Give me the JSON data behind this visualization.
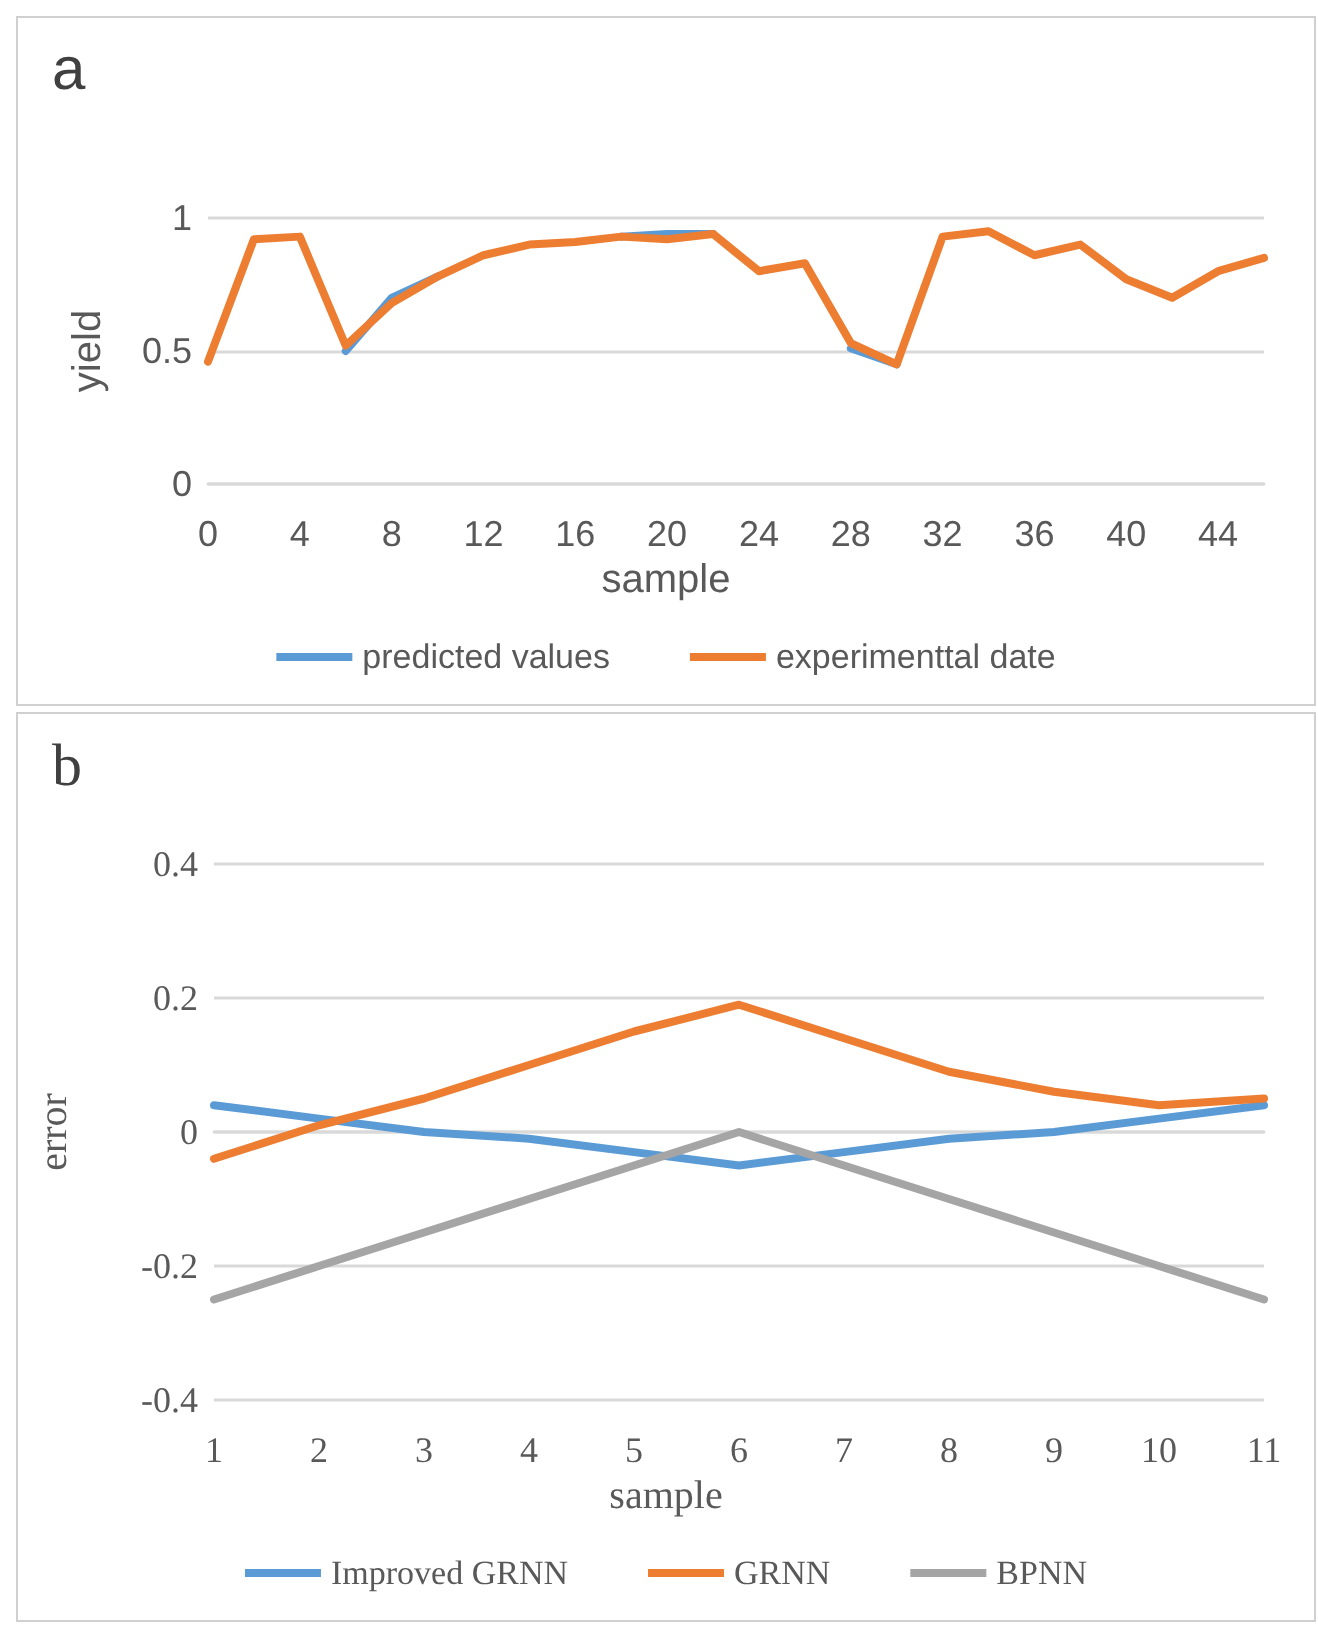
{
  "chart_data": [
    {
      "type": "line",
      "title": "a",
      "xlabel": "sample",
      "ylabel": "yield",
      "categories": [
        "0",
        null,
        "4",
        null,
        "8",
        null,
        "12",
        null,
        "16",
        null,
        "20",
        null,
        "24",
        null,
        "28",
        null,
        "32",
        null,
        "36",
        null,
        "40",
        null,
        "44",
        null
      ],
      "series": [
        {
          "name": "predicted values",
          "color": "#5b9bd5",
          "values": [
            null,
            null,
            null,
            0.5,
            0.7,
            0.78,
            null,
            null,
            null,
            0.93,
            0.94,
            0.94,
            null,
            null,
            0.51,
            0.45,
            null,
            null,
            null,
            null,
            null,
            null,
            null,
            null
          ]
        },
        {
          "name": "experimenttal date",
          "color": "#ed7d31",
          "values": [
            0.46,
            0.92,
            0.93,
            0.52,
            0.68,
            0.78,
            0.86,
            0.9,
            0.91,
            0.93,
            0.92,
            0.94,
            0.8,
            0.83,
            0.53,
            0.45,
            0.93,
            0.95,
            0.86,
            0.9,
            0.77,
            0.7,
            0.8,
            0.85
          ]
        }
      ],
      "ylim": [
        0,
        1
      ],
      "yticks": [
        0,
        0.5,
        1
      ],
      "grid": "y",
      "legend": "bottom",
      "marker": "none",
      "line_style": "solid"
    },
    {
      "type": "line",
      "title": "b",
      "xlabel": "sample",
      "ylabel": "error",
      "categories": [
        "1",
        "2",
        "3",
        "4",
        "5",
        "6",
        "7",
        "8",
        "9",
        "10",
        "11"
      ],
      "series": [
        {
          "name": "Improved GRNN",
          "color": "#5b9bd5",
          "values": [
            0.04,
            0.02,
            0,
            -0.01,
            -0.03,
            -0.05,
            -0.03,
            -0.01,
            0,
            0.02,
            0.04
          ]
        },
        {
          "name": "GRNN",
          "color": "#ed7d31",
          "values": [
            -0.04,
            0.01,
            0.05,
            0.1,
            0.15,
            0.19,
            0.14,
            0.09,
            0.06,
            0.04,
            0.05
          ]
        },
        {
          "name": "BPNN",
          "color": "#a5a5a5",
          "values": [
            -0.25,
            -0.2,
            -0.15,
            -0.1,
            -0.05,
            0,
            -0.05,
            -0.1,
            -0.15,
            -0.2,
            -0.25
          ]
        }
      ],
      "ylim": [
        -0.4,
        0.4
      ],
      "yticks": [
        -0.4,
        -0.2,
        0,
        0.2,
        0.4
      ],
      "grid": "y",
      "legend": "bottom",
      "marker": "none",
      "line_style": "solid"
    }
  ]
}
